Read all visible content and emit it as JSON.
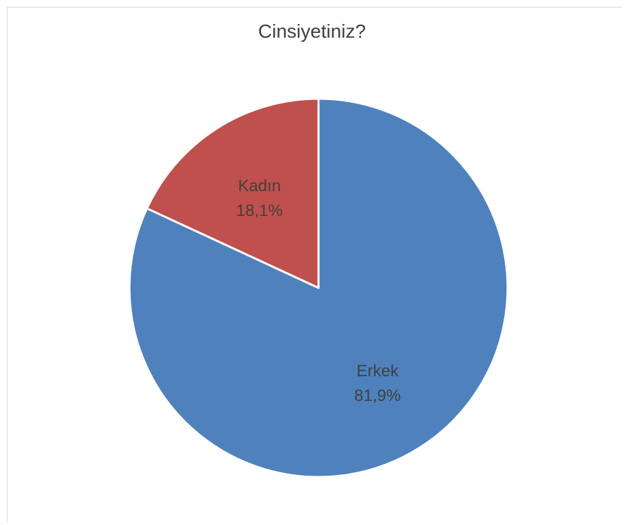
{
  "chart_data": {
    "type": "pie",
    "title": "Cinsiyetiniz?",
    "categories": [
      "Erkek",
      "Kadın"
    ],
    "values": [
      81.9,
      18.1
    ],
    "value_labels": [
      "81,9%",
      "18,1%"
    ],
    "colors": [
      "#4f81bd",
      "#c0504d"
    ],
    "start_angle_deg": 0,
    "direction": "clockwise",
    "legend": "none",
    "data_labels": "inside"
  }
}
